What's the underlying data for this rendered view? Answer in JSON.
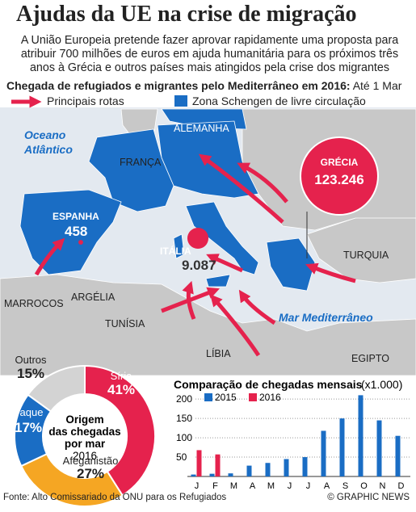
{
  "header": {
    "title": "Ajudas da UE na crise de migração",
    "subtitle": "A União Europeia pretende fazer aprovar rapidamente uma proposta para atribuir 700 milhões de euros em ajuda humanitária para os próximos três anos à Grécia e outros países mais atingidos pela crise dos migrantes"
  },
  "map": {
    "title": "Chegada de refugiados e migrantes pelo Mediterrâneo em 2016:",
    "date": "Até 1 Mar",
    "legend": [
      "Principais rotas",
      "Zona Schengen de livre circulação"
    ],
    "labels": [
      "Oceano",
      "Atlântico",
      "FRANÇA",
      "ALEMANHA",
      "TURQUIA",
      "MARROCOS",
      "ARGÉLIA",
      "TUNÍSIA",
      "LÍBIA",
      "EGIPTO",
      "Mar Mediterrâneo"
    ],
    "bubbles": [
      {
        "name": "ESPANHA",
        "value": 458,
        "label": "458"
      },
      {
        "name": "ITÁLIA",
        "value": 9087,
        "label": "9.087"
      },
      {
        "name": "GRÉCIA",
        "value": 123246,
        "label": "123.246"
      }
    ]
  },
  "chart_data": [
    {
      "type": "donut",
      "title": [
        "Origem",
        "das chegadas",
        "por mar"
      ],
      "subtitle": "2016",
      "categories": [
        "Síria",
        "Afeganistão",
        "Iraque",
        "Outros"
      ],
      "values": [
        41,
        27,
        17,
        15
      ],
      "value_labels": [
        "41%",
        "27%",
        "17%",
        "15%"
      ],
      "colors": [
        "#e5224d",
        "#f5a623",
        "#1a6dc4",
        "#d3d3d3"
      ]
    },
    {
      "type": "bar",
      "title": "Comparação de chegadas mensais",
      "unit": "(x1.000)",
      "categories": [
        "J",
        "F",
        "M",
        "A",
        "M",
        "J",
        "J",
        "A",
        "S",
        "O",
        "N",
        "D"
      ],
      "series": [
        {
          "name": "2015",
          "color": "#1a6dc4",
          "values": [
            5,
            7,
            8,
            28,
            35,
            45,
            50,
            118,
            150,
            210,
            145,
            105
          ]
        },
        {
          "name": "2016",
          "color": "#e5224d",
          "values": [
            68,
            57,
            null,
            null,
            null,
            null,
            null,
            null,
            null,
            null,
            null,
            null
          ]
        }
      ],
      "ylim": [
        0,
        215
      ],
      "yticks": [
        50,
        100,
        150,
        200
      ],
      "grid": true
    }
  ],
  "footer": {
    "source": "Fonte: Alto Comissariado da ONU para os Refugiados",
    "credit": "© GRAPHIC NEWS"
  }
}
